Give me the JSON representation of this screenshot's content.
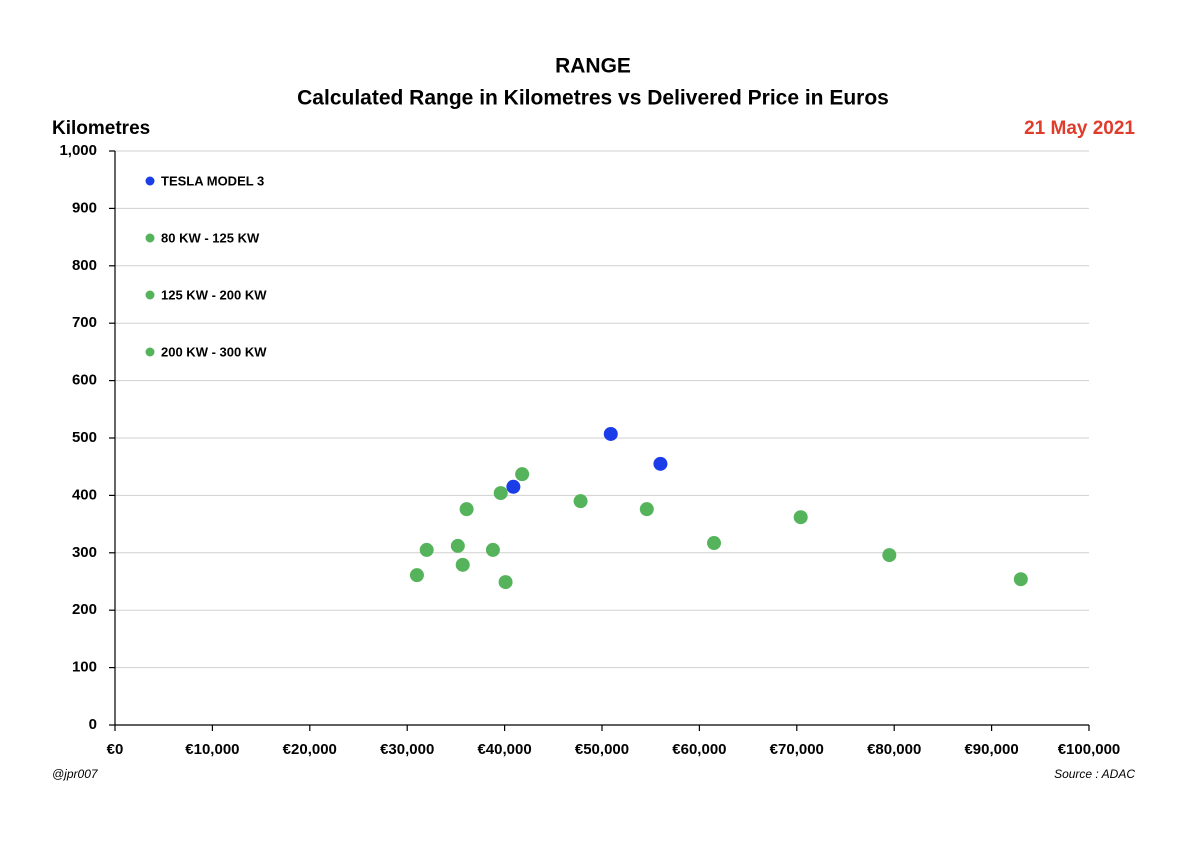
{
  "chart_data": {
    "type": "scatter",
    "title": "RANGE",
    "subtitle": "Calculated Range in Kilometres vs Delivered Price in Euros",
    "y_label": "Kilometres",
    "date": "21 May 2021",
    "credit": "@jpr007",
    "source": "Source : ADAC",
    "xlim": [
      0,
      100000
    ],
    "ylim": [
      0,
      1000
    ],
    "xticks": [
      {
        "value": 0,
        "label": "€0"
      },
      {
        "value": 10000,
        "label": "€10,000"
      },
      {
        "value": 20000,
        "label": "€20,000"
      },
      {
        "value": 30000,
        "label": "€30,000"
      },
      {
        "value": 40000,
        "label": "€40,000"
      },
      {
        "value": 50000,
        "label": "€50,000"
      },
      {
        "value": 60000,
        "label": "€60,000"
      },
      {
        "value": 70000,
        "label": "€70,000"
      },
      {
        "value": 80000,
        "label": "€80,000"
      },
      {
        "value": 90000,
        "label": "€90,000"
      },
      {
        "value": 100000,
        "label": "€100,000"
      }
    ],
    "yticks": [
      0,
      100,
      200,
      300,
      400,
      500,
      600,
      700,
      800,
      900,
      {
        "value": 1000,
        "label": "1,000"
      }
    ],
    "grid": true,
    "legend": "top-left",
    "series": [
      {
        "name": "TESLA MODEL 3",
        "color": "#1a3de8",
        "x": [
          40900,
          50900,
          56000
        ],
        "values": [
          415,
          507,
          455
        ]
      },
      {
        "name": "80 KW - 125 KW",
        "color": "#55b35b",
        "x": [
          31000,
          32000,
          35200,
          35700,
          36100
        ],
        "values": [
          261,
          305,
          312,
          279,
          376
        ]
      },
      {
        "name": "125 KW - 200 KW",
        "color": "#55b35b",
        "x": [
          38800,
          39600,
          40100,
          41800,
          47800
        ],
        "values": [
          305,
          404,
          249,
          437,
          390
        ]
      },
      {
        "name": "200 KW - 300 KW",
        "color": "#55b35b",
        "x": [
          54600,
          61500,
          70400,
          79500,
          93000
        ],
        "values": [
          376,
          317,
          362,
          296,
          254
        ]
      }
    ]
  }
}
